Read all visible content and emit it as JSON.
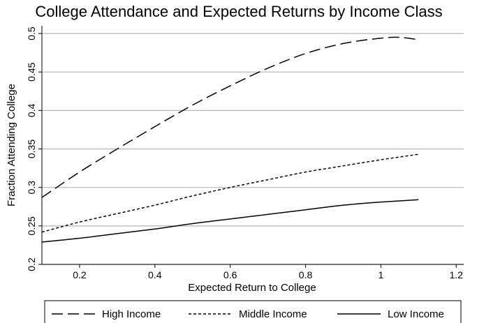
{
  "chart_data": {
    "type": "line",
    "title": "College Attendance and Expected Returns by Income Class",
    "xlabel": "Expected Return to College",
    "ylabel": "Fraction Attending College",
    "xlim": [
      0.1,
      1.22
    ],
    "ylim": [
      0.2,
      0.51
    ],
    "x_ticks": [
      0.2,
      0.4,
      0.6,
      0.8,
      1,
      1.2
    ],
    "x_tick_labels": [
      "0.2",
      "0.4",
      "0.6",
      "0.8",
      "1",
      "1.2"
    ],
    "y_ticks": [
      0.2,
      0.25,
      0.3,
      0.35,
      0.4,
      0.45,
      0.5
    ],
    "y_tick_labels": [
      "0.2",
      "0.25",
      "0.3",
      "0.35",
      "0.4",
      "0.45",
      "0.5"
    ],
    "grid": "horizontal",
    "legend_position": "bottom",
    "series": [
      {
        "name": "High Income",
        "style": "long-dash",
        "color": "#000000",
        "x": [
          0.1,
          0.2,
          0.3,
          0.4,
          0.5,
          0.6,
          0.7,
          0.8,
          0.9,
          1.0,
          1.05,
          1.1
        ],
        "y": [
          0.287,
          0.32,
          0.35,
          0.379,
          0.407,
          0.432,
          0.455,
          0.474,
          0.487,
          0.494,
          0.495,
          0.492
        ]
      },
      {
        "name": "Middle Income",
        "style": "short-dash",
        "color": "#000000",
        "x": [
          0.1,
          0.2,
          0.3,
          0.4,
          0.5,
          0.6,
          0.7,
          0.8,
          0.9,
          1.0,
          1.1
        ],
        "y": [
          0.242,
          0.255,
          0.266,
          0.277,
          0.289,
          0.3,
          0.31,
          0.32,
          0.328,
          0.336,
          0.343
        ]
      },
      {
        "name": "Low Income",
        "style": "solid",
        "color": "#000000",
        "x": [
          0.1,
          0.2,
          0.3,
          0.4,
          0.5,
          0.6,
          0.7,
          0.8,
          0.9,
          1.0,
          1.1
        ],
        "y": [
          0.229,
          0.234,
          0.24,
          0.246,
          0.253,
          0.259,
          0.265,
          0.271,
          0.277,
          0.281,
          0.284
        ]
      }
    ]
  }
}
